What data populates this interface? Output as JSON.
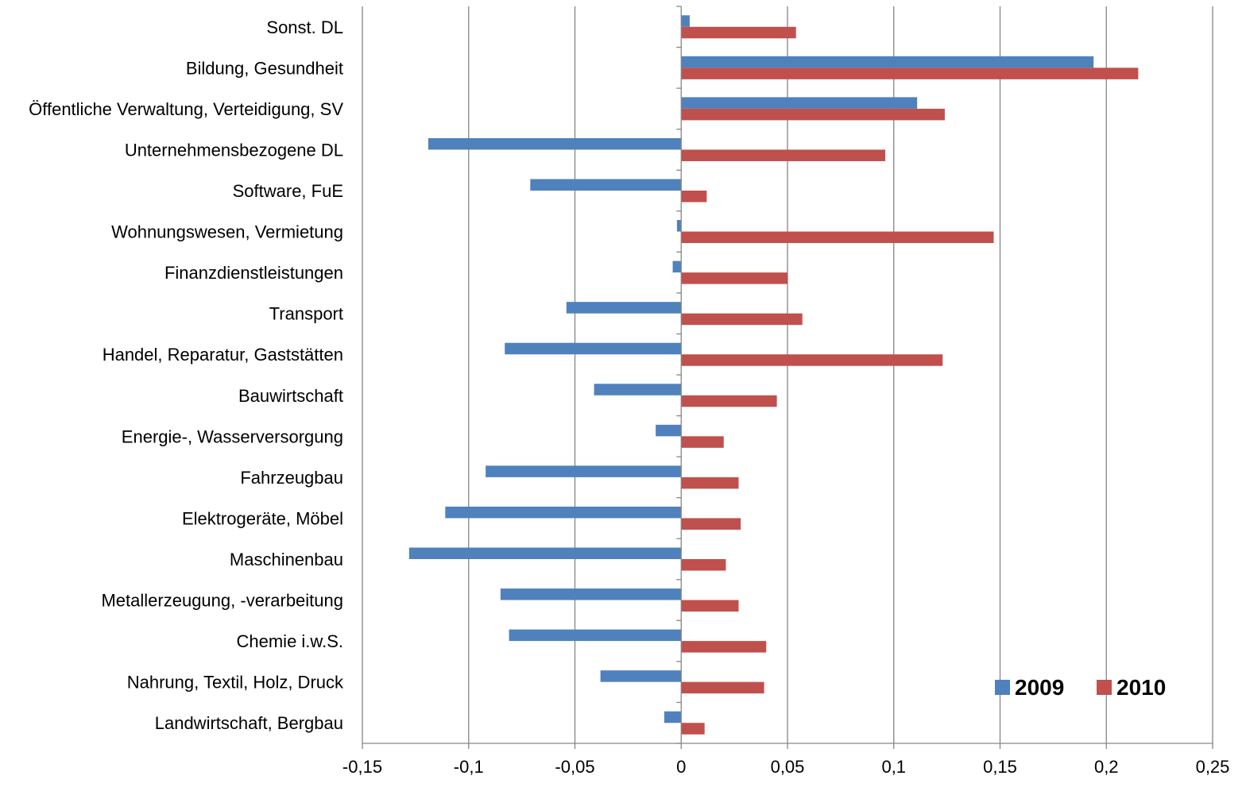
{
  "chart_data": {
    "type": "bar",
    "orientation": "horizontal",
    "title": "",
    "xlabel": "",
    "ylabel": "",
    "xlim": [
      -0.15,
      0.25
    ],
    "x_ticks": [
      -0.15,
      -0.1,
      -0.05,
      0,
      0.05,
      0.1,
      0.15,
      0.2,
      0.25
    ],
    "x_tick_labels": [
      "-0,15",
      "-0,1",
      "-0,05",
      "0",
      "0,05",
      "0,1",
      "0,15",
      "0,2",
      "0,25"
    ],
    "grid": "vertical",
    "legend_position": "bottom-right",
    "categories": [
      "Sonst. DL",
      "Bildung, Gesundheit",
      "Öffentliche Verwaltung, Verteidigung, SV",
      "Unternehmensbezogene DL",
      "Software, FuE",
      "Wohnungswesen, Vermietung",
      "Finanzdienstleistungen",
      "Transport",
      "Handel, Reparatur, Gaststätten",
      "Bauwirtschaft",
      "Energie-, Wasserversorgung",
      "Fahrzeugbau",
      "Elektrogeräte, Möbel",
      "Maschinenbau",
      "Metallerzeugung, -verarbeitung",
      "Chemie i.w.S.",
      "Nahrung, Textil, Holz, Druck",
      "Landwirtschaft, Bergbau"
    ],
    "series": [
      {
        "name": "2009",
        "color": "#4f81bd",
        "values": [
          0.004,
          0.194,
          0.111,
          -0.119,
          -0.071,
          -0.002,
          -0.004,
          -0.054,
          -0.083,
          -0.041,
          -0.012,
          -0.092,
          -0.111,
          -0.128,
          -0.085,
          -0.081,
          -0.038,
          -0.008
        ]
      },
      {
        "name": "2010",
        "color": "#c0504d",
        "values": [
          0.054,
          0.215,
          0.124,
          0.096,
          0.012,
          0.147,
          0.05,
          0.057,
          0.123,
          0.045,
          0.02,
          0.027,
          0.028,
          0.021,
          0.027,
          0.04,
          0.039,
          0.011
        ]
      }
    ]
  }
}
